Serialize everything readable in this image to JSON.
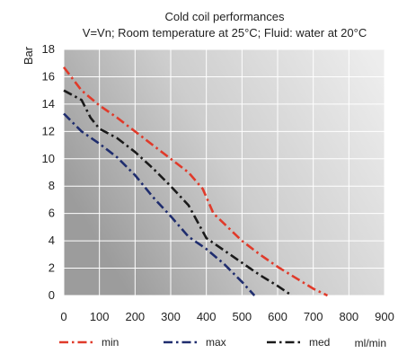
{
  "chart_data": {
    "type": "line",
    "title": "Cold coil performances",
    "subtitle": "V=Vn; Room temperature at 25°C; Fluid: water at 20°C",
    "ylabel": "Bar",
    "xlabel": "ml/min",
    "xlim": [
      0,
      900
    ],
    "ylim": [
      0,
      18
    ],
    "xticks": [
      "0",
      "100",
      "200",
      "300",
      "400",
      "500",
      "600",
      "700",
      "800",
      "900"
    ],
    "yticks": [
      "0",
      "2",
      "4",
      "6",
      "8",
      "10",
      "12",
      "14",
      "16",
      "18"
    ],
    "grid": true,
    "legend_position": "bottom",
    "series": [
      {
        "name": "min",
        "color": "#e03a2a",
        "dash": "dash-dot",
        "x": [
          0,
          50,
          100,
          150,
          200,
          250,
          300,
          350,
          390,
          420,
          460,
          500,
          550,
          600,
          650,
          700,
          740
        ],
        "y": [
          16.7,
          15.0,
          13.9,
          13.0,
          12.0,
          11.0,
          10.0,
          9.0,
          7.8,
          6.0,
          5.0,
          4.0,
          3.0,
          2.1,
          1.3,
          0.5,
          0
        ]
      },
      {
        "name": "max",
        "color": "#1f2d6e",
        "dash": "dash-dot",
        "x": [
          0,
          50,
          100,
          150,
          200,
          250,
          300,
          350,
          400,
          450,
          500,
          535
        ],
        "y": [
          13.3,
          12.0,
          11.1,
          10.1,
          8.8,
          7.2,
          5.8,
          4.3,
          3.4,
          2.3,
          1.0,
          0
        ]
      },
      {
        "name": "med",
        "color": "#1a1a1a",
        "dash": "dash-dot",
        "x": [
          0,
          50,
          75,
          100,
          150,
          200,
          250,
          300,
          350,
          400,
          450,
          500,
          550,
          600,
          640
        ],
        "y": [
          15.0,
          14.3,
          13.0,
          12.2,
          11.5,
          10.5,
          9.3,
          8.0,
          6.6,
          4.2,
          3.3,
          2.4,
          1.5,
          0.7,
          0
        ]
      }
    ]
  }
}
